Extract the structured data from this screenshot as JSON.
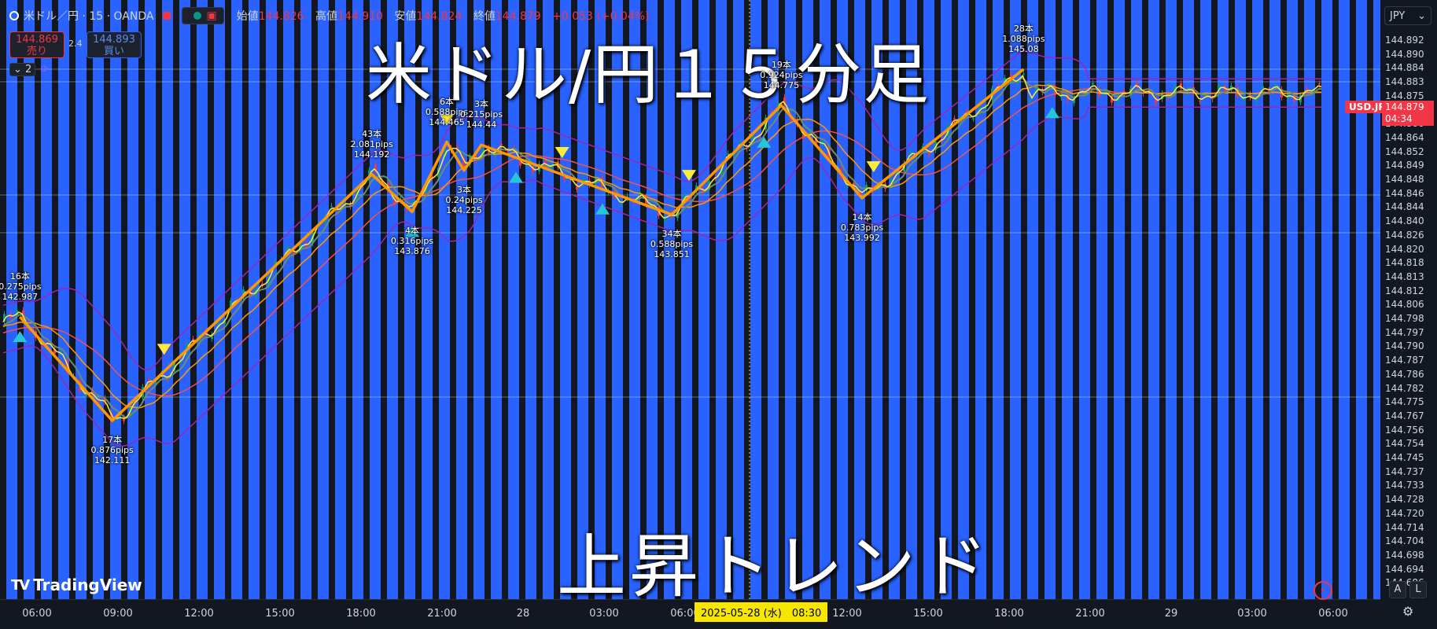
{
  "header": {
    "symbol": "米ドル／円 · 15 · OANDA",
    "ohlc": [
      {
        "label": "始値",
        "value": "144.826"
      },
      {
        "label": "高値",
        "value": "144.910"
      },
      {
        "label": "安値",
        "value": "144.824"
      },
      {
        "label": "終値",
        "value": "144.879"
      }
    ],
    "change": "+0.053 (+0.04%)"
  },
  "trade": {
    "sell_price": "144.869",
    "sell_label": "売り",
    "spread": "2.4",
    "buy_price": "144.893",
    "buy_label": "買い"
  },
  "indicators_count": "2",
  "overlay": {
    "title": "米ドル/円１５分足",
    "subtitle": "上昇トレンド"
  },
  "price_axis": {
    "currency": "JPY",
    "symbol_tag": "USD.JPY",
    "current_price": "144.879",
    "countdown": "04:34",
    "ticks": [
      "144.892",
      "144.890",
      "144.884",
      "144.883",
      "144.875",
      "144.869",
      "144.866",
      "144.864",
      "144.852",
      "144.849",
      "144.848",
      "144.846",
      "144.844",
      "144.840",
      "144.826",
      "144.820",
      "144.818",
      "144.813",
      "144.812",
      "144.806",
      "144.798",
      "144.797",
      "144.790",
      "144.787",
      "144.786",
      "144.782",
      "144.775",
      "144.767",
      "144.756",
      "144.754",
      "144.745",
      "144.737",
      "144.733",
      "144.728",
      "144.720",
      "144.714",
      "144.704",
      "144.698",
      "144.694",
      "144.686"
    ]
  },
  "time_axis": {
    "ticks": [
      "06:00",
      "09:00",
      "12:00",
      "15:00",
      "18:00",
      "21:00",
      "28",
      "03:00",
      "06:00",
      "09:00",
      "12:00",
      "15:00",
      "18:00",
      "21:00",
      "29",
      "03:00",
      "06:00"
    ],
    "crosshair": "2025-05-28 (水)　08:30"
  },
  "brand": "TradingView",
  "buttons": {
    "auto": "A",
    "log": "L"
  },
  "colors": {
    "background": "#131722",
    "stripe": "#2962ff",
    "zigzag": "#ff9800",
    "bollinger": "#9c27b0",
    "fast_ma": "#ffeb3b",
    "mid_ma": "#6b8e6b",
    "slow_ma": "#ff9800",
    "long_ma": "#f0524f",
    "up_arrow": "#26c6da",
    "down_arrow": "#ffeb3b",
    "candle_up": "#089981",
    "candle_down": "#f23645"
  },
  "chart_data": {
    "type": "line",
    "zigzag": {
      "name": "ZigZag",
      "points": [
        {
          "time": "05-27 05:30",
          "price": 142.987,
          "label_bars": "16本",
          "label_pips": "0.275pips"
        },
        {
          "time": "05-27 09:30",
          "price": 142.111,
          "label_bars": "17本",
          "label_pips": "0.876pips"
        },
        {
          "time": "05-27 20:45",
          "price": 144.192,
          "label_bars": "43本",
          "label_pips": "2.081pips"
        },
        {
          "time": "05-27 22:30",
          "price": 143.876,
          "label_bars": "4本",
          "label_pips": "0.316pips"
        },
        {
          "time": "05-28 00:00",
          "price": 144.465,
          "label_bars": "6本",
          "label_pips": "0.588pips"
        },
        {
          "time": "05-28 00:45",
          "price": 144.225,
          "label_bars": "3本",
          "label_pips": "0.24pips"
        },
        {
          "time": "05-28 01:30",
          "price": 144.44,
          "label_bars": "3本",
          "label_pips": "0.215pips"
        },
        {
          "time": "05-28 09:45",
          "price": 143.851,
          "label_bars": "34本",
          "label_pips": "0.588pips"
        },
        {
          "time": "05-28 14:30",
          "price": 144.775,
          "label_bars": "19本",
          "label_pips": "0.924pips"
        },
        {
          "time": "05-28 18:00",
          "price": 143.992,
          "label_bars": "14本",
          "label_pips": "0.783pips"
        },
        {
          "time": "05-29 01:00",
          "price": 145.08,
          "label_bars": "28本",
          "label_pips": "1.088pips"
        }
      ]
    },
    "up_signals": [
      "05-27 05:30",
      "05-27 22:30",
      "05-28 03:00",
      "05-28 06:45",
      "05-28 13:45",
      "05-29 02:15"
    ],
    "down_signals": [
      "05-27 11:45",
      "05-28 00:00",
      "05-28 05:00",
      "05-28 10:30",
      "05-28 18:30"
    ]
  }
}
